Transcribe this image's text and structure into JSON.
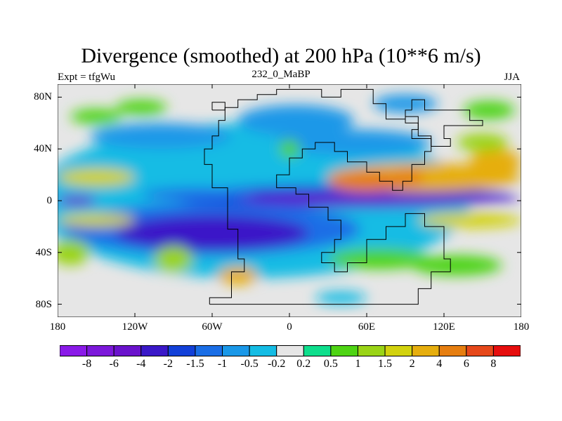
{
  "title": "Divergence (smoothed) at 200 hPa (10**6 m/s)",
  "left_subtitle": "Expt = tfgWu",
  "center_subtitle": "232_0_MaBP",
  "right_subtitle": "JJA",
  "chart_data": {
    "type": "heatmap",
    "variable": "Divergence (smoothed) at 200 hPa",
    "units": "10**6 m/s",
    "experiment": "tfgWu",
    "period": "232_0_MaBP",
    "season": "JJA",
    "xlim": [
      -180,
      180
    ],
    "ylim": [
      -90,
      90
    ],
    "lat_ticks": [
      {
        "value": 80,
        "label": "80N"
      },
      {
        "value": 40,
        "label": "40N"
      },
      {
        "value": 0,
        "label": "0"
      },
      {
        "value": -40,
        "label": "40S"
      },
      {
        "value": -80,
        "label": "80S"
      }
    ],
    "lon_ticks": [
      {
        "value": -180,
        "label": "180"
      },
      {
        "value": -120,
        "label": "120W"
      },
      {
        "value": -60,
        "label": "60W"
      },
      {
        "value": 0,
        "label": "0"
      },
      {
        "value": 60,
        "label": "60E"
      },
      {
        "value": 120,
        "label": "120E"
      },
      {
        "value": 180,
        "label": "180"
      }
    ],
    "colorbar": {
      "levels": [
        "-8",
        "-6",
        "-4",
        "-2",
        "-1.5",
        "-1",
        "-0.5",
        "-0.2",
        "0.2",
        "0.5",
        "1",
        "1.5",
        "2",
        "4",
        "6",
        "8"
      ],
      "colors": [
        "#8a1ae8",
        "#7c18da",
        "#6a12cc",
        "#3a18c8",
        "#1240d8",
        "#1a6ee6",
        "#1a98e8",
        "#14bce4",
        "#e6e6e6",
        "#0ede8c",
        "#4ed414",
        "#9ad416",
        "#d2d20e",
        "#e6ae0e",
        "#e67e10",
        "#e6481a",
        "#e60e0e"
      ]
    },
    "regions": [
      {
        "lon": -30,
        "lat": 0,
        "lon_half": 170,
        "lat_half": 60,
        "value": -0.3
      },
      {
        "lon": -60,
        "lat": -22,
        "lon_half": 115,
        "lat_half": 20,
        "value": -1.2
      },
      {
        "lon": -60,
        "lat": -25,
        "lon_half": 75,
        "lat_half": 14,
        "value": -2.5
      },
      {
        "lon": 40,
        "lat": 3,
        "lon_half": 135,
        "lat_half": 9,
        "value": -2
      },
      {
        "lon": 70,
        "lat": 1,
        "lon_half": 110,
        "lat_half": 4,
        "value": -4.5
      },
      {
        "lon": -165,
        "lat": 0,
        "lon_half": 15,
        "lat_half": 4,
        "value": -4.5
      },
      {
        "lon": -70,
        "lat": 5,
        "lon_half": 45,
        "lat_half": 5,
        "value": -1.5
      },
      {
        "lon": 5,
        "lat": 62,
        "lon_half": 45,
        "lat_half": 12,
        "value": -1
      },
      {
        "lon": 50,
        "lat": 45,
        "lon_half": 60,
        "lat_half": 10,
        "value": -1
      },
      {
        "lon": -100,
        "lat": 50,
        "lon_half": 55,
        "lat_half": 10,
        "value": -0.8
      },
      {
        "lon": 90,
        "lat": 75,
        "lon_half": 25,
        "lat_half": 7,
        "value": -0.6
      },
      {
        "lon": -150,
        "lat": 65,
        "lon_half": 20,
        "lat_half": 6,
        "value": 0.8
      },
      {
        "lon": -115,
        "lat": 72,
        "lon_half": 20,
        "lat_half": 6,
        "value": 0.6
      },
      {
        "lon": 155,
        "lat": 70,
        "lon_half": 20,
        "lat_half": 7,
        "value": 0.7
      },
      {
        "lon": 0,
        "lat": 40,
        "lon_half": 8,
        "lat_half": 7,
        "value": 0.8
      },
      {
        "lon": -150,
        "lat": 18,
        "lon_half": 30,
        "lat_half": 7,
        "value": 1.5
      },
      {
        "lon": 105,
        "lat": 18,
        "lon_half": 75,
        "lat_half": 11,
        "value": 2.2
      },
      {
        "lon": 60,
        "lat": 15,
        "lon_half": 30,
        "lat_half": 8,
        "value": 4.5
      },
      {
        "lon": 92,
        "lat": 18,
        "lon_half": 12,
        "lat_half": 6,
        "value": 4.5
      },
      {
        "lon": 160,
        "lat": 30,
        "lon_half": 20,
        "lat_half": 10,
        "value": 2.5
      },
      {
        "lon": 150,
        "lat": 45,
        "lon_half": 20,
        "lat_half": 7,
        "value": 1.2
      },
      {
        "lon": 140,
        "lat": -15,
        "lon_half": 40,
        "lat_half": 6,
        "value": 1.5
      },
      {
        "lon": -150,
        "lat": -15,
        "lon_half": 30,
        "lat_half": 5,
        "value": 1.5
      },
      {
        "lon": -170,
        "lat": -40,
        "lon_half": 15,
        "lat_half": 10,
        "value": 1.2
      },
      {
        "lon": -90,
        "lat": -45,
        "lon_half": 15,
        "lat_half": 10,
        "value": 1.2
      },
      {
        "lon": -40,
        "lat": -58,
        "lon_half": 15,
        "lat_half": 7,
        "value": 2.5
      },
      {
        "lon": 70,
        "lat": -45,
        "lon_half": 40,
        "lat_half": 8,
        "value": 0.8
      },
      {
        "lon": 130,
        "lat": -50,
        "lon_half": 35,
        "lat_half": 8,
        "value": 0.8
      },
      {
        "lon": 40,
        "lat": -75,
        "lon_half": 20,
        "lat_half": 5,
        "value": -0.4
      }
    ],
    "coastlines": [
      {
        "name": "western-continent",
        "points": [
          [
            -62,
            -80
          ],
          [
            -62,
            -75
          ],
          [
            -45,
            -75
          ],
          [
            -45,
            -55
          ],
          [
            -35,
            -55
          ],
          [
            -35,
            -45
          ],
          [
            -40,
            -45
          ],
          [
            -40,
            -22
          ],
          [
            -48,
            -22
          ],
          [
            -48,
            -5
          ],
          [
            -48,
            10
          ],
          [
            -60,
            10
          ],
          [
            -60,
            28
          ],
          [
            -66,
            28
          ],
          [
            -66,
            40
          ],
          [
            -60,
            40
          ],
          [
            -60,
            50
          ],
          [
            -55,
            50
          ],
          [
            -55,
            62
          ],
          [
            -50,
            62
          ],
          [
            -50,
            72
          ],
          [
            -40,
            72
          ],
          [
            -40,
            78
          ],
          [
            -25,
            78
          ],
          [
            -25,
            82
          ],
          [
            -10,
            82
          ],
          [
            -10,
            86
          ],
          [
            25,
            86
          ],
          [
            25,
            80
          ],
          [
            40,
            80
          ],
          [
            40,
            86
          ],
          [
            65,
            86
          ],
          [
            65,
            75
          ],
          [
            75,
            75
          ],
          [
            75,
            63
          ],
          [
            90,
            63
          ],
          [
            90,
            65
          ],
          [
            100,
            65
          ],
          [
            100,
            55
          ],
          [
            95,
            55
          ],
          [
            95,
            48
          ],
          [
            110,
            48
          ],
          [
            110,
            38
          ],
          [
            105,
            38
          ],
          [
            105,
            28
          ],
          [
            95,
            28
          ],
          [
            95,
            15
          ],
          [
            88,
            15
          ],
          [
            88,
            8
          ],
          [
            80,
            8
          ],
          [
            80,
            15
          ],
          [
            70,
            15
          ],
          [
            70,
            22
          ],
          [
            60,
            22
          ],
          [
            60,
            30
          ],
          [
            45,
            30
          ],
          [
            45,
            38
          ],
          [
            35,
            38
          ],
          [
            35,
            45
          ],
          [
            20,
            45
          ],
          [
            20,
            40
          ],
          [
            10,
            40
          ],
          [
            10,
            33
          ],
          [
            0,
            33
          ],
          [
            0,
            20
          ],
          [
            -10,
            20
          ],
          [
            -10,
            10
          ],
          [
            5,
            10
          ],
          [
            5,
            5
          ],
          [
            15,
            5
          ],
          [
            15,
            -5
          ],
          [
            30,
            -5
          ],
          [
            30,
            -15
          ],
          [
            40,
            -15
          ],
          [
            40,
            -30
          ],
          [
            35,
            -30
          ],
          [
            35,
            -40
          ],
          [
            25,
            -40
          ],
          [
            25,
            -48
          ],
          [
            35,
            -48
          ],
          [
            35,
            -55
          ],
          [
            45,
            -55
          ],
          [
            45,
            -48
          ],
          [
            60,
            -48
          ],
          [
            60,
            -30
          ],
          [
            75,
            -30
          ],
          [
            75,
            -20
          ],
          [
            90,
            -20
          ],
          [
            90,
            -10
          ],
          [
            105,
            -10
          ],
          [
            105,
            -20
          ],
          [
            120,
            -20
          ],
          [
            120,
            -45
          ],
          [
            125,
            -45
          ],
          [
            125,
            -55
          ],
          [
            110,
            -55
          ],
          [
            110,
            -68
          ],
          [
            100,
            -68
          ],
          [
            100,
            -80
          ],
          [
            -62,
            -80
          ]
        ]
      },
      {
        "name": "northern-island",
        "points": [
          [
            -60,
            70
          ],
          [
            -50,
            70
          ],
          [
            -50,
            76
          ],
          [
            -60,
            76
          ],
          [
            -60,
            70
          ]
        ]
      },
      {
        "name": "eastern-landmass",
        "points": [
          [
            95,
            70
          ],
          [
            95,
            78
          ],
          [
            105,
            78
          ],
          [
            105,
            70
          ],
          [
            140,
            70
          ],
          [
            140,
            62
          ],
          [
            150,
            62
          ],
          [
            150,
            58
          ],
          [
            120,
            58
          ],
          [
            120,
            48
          ],
          [
            125,
            48
          ],
          [
            125,
            42
          ],
          [
            110,
            42
          ],
          [
            110,
            50
          ],
          [
            100,
            50
          ],
          [
            100,
            60
          ],
          [
            90,
            60
          ],
          [
            90,
            70
          ],
          [
            95,
            70
          ]
        ]
      }
    ]
  }
}
